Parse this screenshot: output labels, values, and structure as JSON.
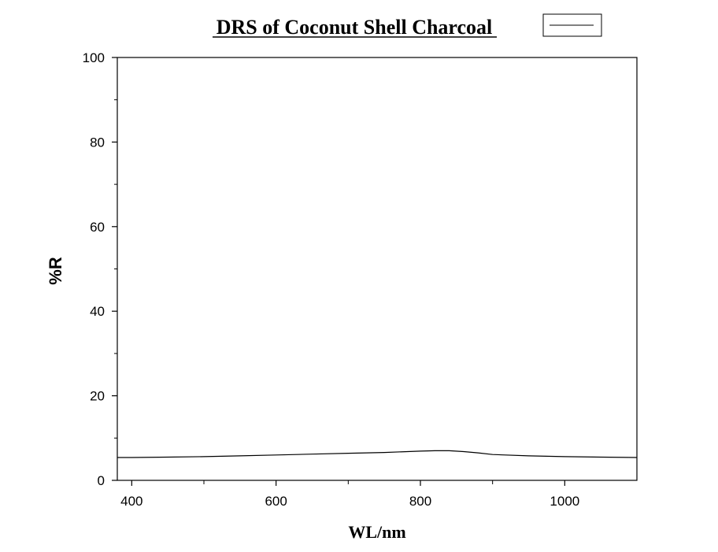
{
  "chart_data": {
    "type": "line",
    "title": "DRS of Coconut Shell Charcoal",
    "xlabel": "WL/nm",
    "ylabel": "%R",
    "xlim": [
      380,
      1100
    ],
    "ylim": [
      0,
      100
    ],
    "x_ticks": [
      400,
      600,
      800,
      1000
    ],
    "y_ticks": [
      0,
      20,
      40,
      60,
      80,
      100
    ],
    "grid": false,
    "legend": "top-right",
    "series": [
      {
        "color": "#000000",
        "x": [
          380,
          400,
          450,
          500,
          550,
          600,
          650,
          700,
          750,
          800,
          820,
          840,
          860,
          880,
          900,
          950,
          1000,
          1050,
          1100
        ],
        "y": [
          5.4,
          5.4,
          5.5,
          5.6,
          5.8,
          6.0,
          6.2,
          6.4,
          6.6,
          6.9,
          7.0,
          7.0,
          6.8,
          6.5,
          6.1,
          5.8,
          5.6,
          5.5,
          5.4
        ]
      }
    ]
  }
}
